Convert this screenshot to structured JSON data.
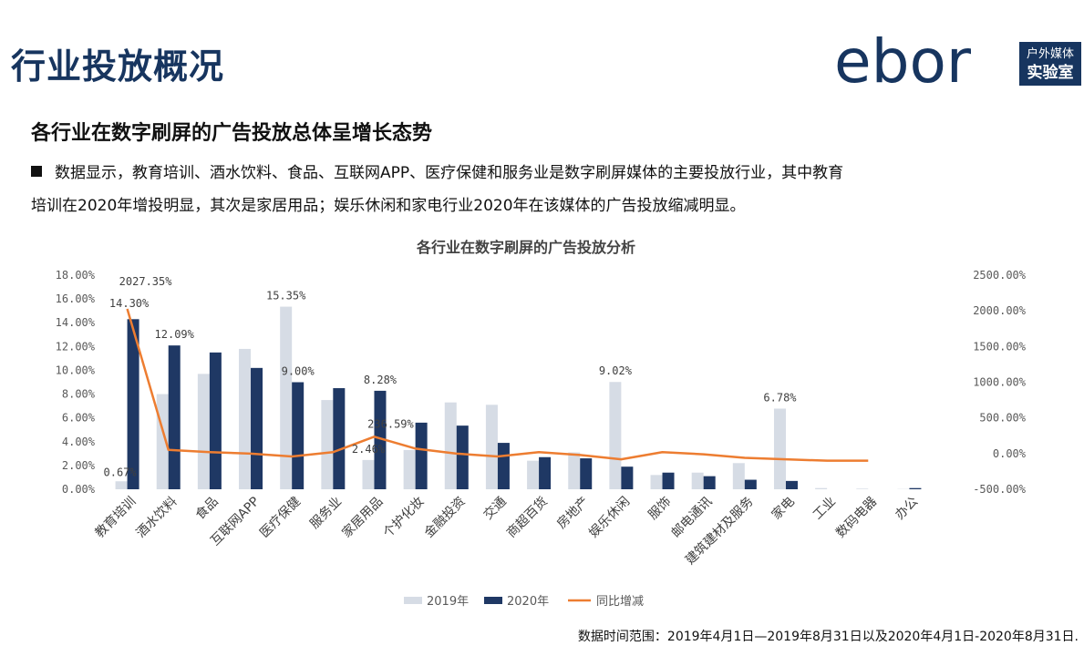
{
  "header": {
    "title": "行业投放概况",
    "logo_text": "ebor",
    "logo_badge_line1": "户外媒体",
    "logo_badge_line2": "实验室"
  },
  "subtitle": "各行业在数字刷屏的广告投放总体呈增长态势",
  "bullet": {
    "line1": "数据显示，教育培训、酒水饮料、食品、互联网APP、医疗保健和服务业是数字刷屏媒体的主要投放行业，其中教育",
    "line2": "培训在2020年增投明显，其次是家居用品；娱乐休闲和家电行业2020年在该媒体的广告投放缩减明显。"
  },
  "footnote": "数据时间范围：2019年4月1日—2019年8月31日以及2020年4月1日-2020年8月31日.",
  "colors": {
    "s2019": "#d6dce5",
    "s2020": "#1f3864",
    "yoy": "#ed7d31",
    "title": "#17355f"
  },
  "chart_data": {
    "type": "bar",
    "title": "各行业在数字刷屏的广告投放分析",
    "categories": [
      "教育培训",
      "酒水饮料",
      "食品",
      "互联网APP",
      "医疗保健",
      "服务业",
      "家居用品",
      "个护化妆",
      "金融投资",
      "交通",
      "商超百货",
      "房地产",
      "娱乐休闲",
      "服饰",
      "邮电通讯",
      "建筑建材及服务",
      "家电",
      "工业",
      "数码电器",
      "办公"
    ],
    "series": [
      {
        "name": "2019年",
        "type": "bar",
        "axis": "left",
        "values": [
          0.67,
          8.0,
          9.7,
          11.8,
          15.35,
          7.5,
          2.46,
          3.3,
          7.3,
          7.1,
          2.4,
          3.1,
          9.02,
          1.2,
          1.4,
          2.2,
          6.78,
          0.1,
          0.05,
          0.02
        ]
      },
      {
        "name": "2020年",
        "type": "bar",
        "axis": "left",
        "values": [
          14.3,
          12.09,
          11.5,
          10.2,
          9.0,
          8.5,
          8.28,
          5.6,
          5.35,
          3.9,
          2.7,
          2.6,
          1.9,
          1.4,
          1.1,
          0.8,
          0.7,
          0.0,
          0.0,
          0.1
        ]
      },
      {
        "name": "同比增减",
        "type": "line",
        "axis": "right",
        "values": [
          2027.35,
          52,
          20,
          0,
          -40,
          20,
          236.59,
          70,
          0,
          -40,
          20,
          -20,
          -80,
          20,
          -10,
          -60,
          -80,
          -100,
          -100,
          null
        ]
      }
    ],
    "data_labels": [
      {
        "series": 0,
        "index": 0,
        "text": "0.67%"
      },
      {
        "series": 1,
        "index": 0,
        "text": "14.30%"
      },
      {
        "series": 2,
        "index": 0,
        "text": "2027.35%"
      },
      {
        "series": 1,
        "index": 1,
        "text": "12.09%"
      },
      {
        "series": 0,
        "index": 4,
        "text": "15.35%"
      },
      {
        "series": 1,
        "index": 4,
        "text": "9.00%"
      },
      {
        "series": 1,
        "index": 6,
        "text": "8.28%"
      },
      {
        "series": 0,
        "index": 6,
        "text": "2.46%"
      },
      {
        "series": 2,
        "index": 6,
        "text": "236.59%"
      },
      {
        "series": 0,
        "index": 12,
        "text": "9.02%"
      },
      {
        "series": 0,
        "index": 16,
        "text": "6.78%"
      }
    ],
    "y_left": {
      "min": 0,
      "max": 18,
      "ticks": [
        "0.00%",
        "2.00%",
        "4.00%",
        "6.00%",
        "8.00%",
        "10.00%",
        "12.00%",
        "14.00%",
        "16.00%",
        "18.00%"
      ]
    },
    "y_right": {
      "min": -500,
      "max": 2500,
      "ticks": [
        "-500.00%",
        "0.00%",
        "500.00%",
        "1000.00%",
        "1500.00%",
        "2000.00%",
        "2500.00%"
      ]
    },
    "grid": false,
    "legend": "bottom-center"
  }
}
